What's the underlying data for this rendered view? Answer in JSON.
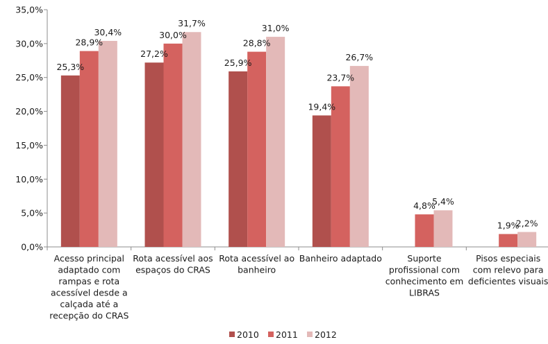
{
  "chart_data": {
    "type": "bar",
    "categories": [
      "Acesso principal adaptado com rampas e rota acessível desde a calçada até a recepção do CRAS",
      "Rota acessível aos espaços do CRAS",
      "Rota acessível ao banheiro",
      "Banheiro adaptado",
      "Suporte profissional com conhecimento em LIBRAS",
      "Pisos especiais com relevo para deficientes visuais"
    ],
    "category_lines": [
      [
        "Acesso principal",
        "adaptado com",
        "rampas e rota",
        "acessível desde a",
        "calçada até a",
        "recepção do CRAS"
      ],
      [
        "Rota acessível aos",
        "espaços do CRAS"
      ],
      [
        "Rota acessível ao",
        "banheiro"
      ],
      [
        "Banheiro adaptado"
      ],
      [
        "Suporte",
        "profissional com",
        "conhecimento em",
        "LIBRAS"
      ],
      [
        "Pisos especiais",
        "com relevo para",
        "deficientes visuais"
      ]
    ],
    "series": [
      {
        "name": "2010",
        "color": "#b0504d",
        "values": [
          25.3,
          27.2,
          25.9,
          19.4,
          null,
          null
        ],
        "labels": [
          "25,3%",
          "27,2%",
          "25,9%",
          "19,4%",
          "",
          ""
        ]
      },
      {
        "name": "2011",
        "color": "#d4625f",
        "values": [
          28.9,
          30.0,
          28.8,
          23.7,
          4.8,
          1.9
        ],
        "labels": [
          "28,9%",
          "30,0%",
          "28,8%",
          "23,7%",
          "4,8%",
          "1,9%"
        ]
      },
      {
        "name": "2012",
        "color": "#e3b9b8",
        "values": [
          30.4,
          31.7,
          31.0,
          26.7,
          5.4,
          2.2
        ],
        "labels": [
          "30,4%",
          "31,7%",
          "31,0%",
          "26,7%",
          "5,4%",
          "2,2%"
        ]
      }
    ],
    "ylim": [
      0,
      35
    ],
    "yticks": [
      0,
      5,
      10,
      15,
      20,
      25,
      30,
      35
    ],
    "ytick_labels": [
      "0,0%",
      "5,0%",
      "10,0%",
      "15,0%",
      "20,0%",
      "25,0%",
      "30,0%",
      "35,0%"
    ],
    "grid": false,
    "legend_position": "bottom"
  }
}
